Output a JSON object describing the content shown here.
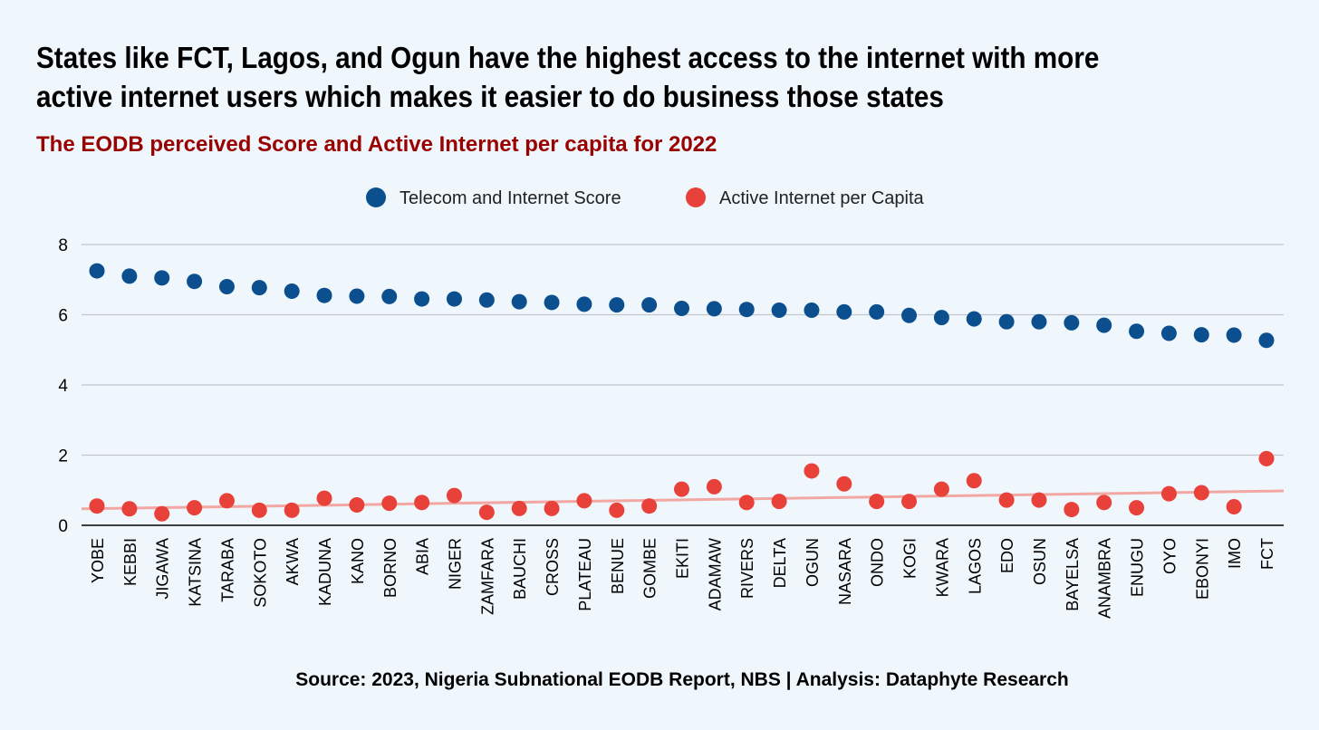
{
  "title": "States like FCT, Lagos, and Ogun have the highest access to the internet with more active internet users which makes it easier to do business those states",
  "subtitle": "The EODB perceived Score and Active Internet per capita for 2022",
  "source": "Source: 2023, Nigeria Subnational EODB Report, NBS | Analysis: Dataphyte Research",
  "colors": {
    "telecom": "#0b4f8f",
    "internet": "#e8413a",
    "trend": "#f2a7a3",
    "grid": "#c2c7cc",
    "axis": "#000000",
    "background": "#eff6fc"
  },
  "chart_data": {
    "type": "scatter",
    "title": "The EODB perceived Score and Active Internet per capita for 2022",
    "xlabel": "",
    "ylabel": "",
    "ylim": [
      0,
      8
    ],
    "yticks": [
      0,
      2,
      4,
      6,
      8
    ],
    "ytick_labels": [
      "0",
      "2",
      "4",
      "6",
      "8"
    ],
    "grid": true,
    "legend_position": "top-center",
    "categories": [
      "YOBE",
      "KEBBI",
      "JIGAWA",
      "KATSINA",
      "TARABA",
      "SOKOTO",
      "AKWA",
      "KADUNA",
      "KANO",
      "BORNO",
      "ABIA",
      "NIGER",
      "ZAMFARA",
      "BAUCHI",
      "CROSS",
      "PLATEAU",
      "BENUE",
      "GOMBE",
      "EKITI",
      "ADAMAW",
      "RIVERS",
      "DELTA",
      "OGUN",
      "NASARA",
      "ONDO",
      "KOGI",
      "KWARA",
      "LAGOS",
      "EDO",
      "OSUN",
      "BAYELSA",
      "ANAMBRA",
      "ENUGU",
      "OYO",
      "EBONYI",
      "IMO",
      "FCT"
    ],
    "series": [
      {
        "name": "Telecom and Internet Score",
        "values": [
          7.25,
          7.1,
          7.05,
          6.95,
          6.8,
          6.77,
          6.67,
          6.55,
          6.53,
          6.52,
          6.45,
          6.45,
          6.42,
          6.37,
          6.35,
          6.3,
          6.28,
          6.28,
          6.18,
          6.17,
          6.15,
          6.13,
          6.13,
          6.08,
          6.08,
          5.98,
          5.92,
          5.88,
          5.8,
          5.8,
          5.77,
          5.7,
          5.53,
          5.47,
          5.43,
          5.42,
          5.27
        ]
      },
      {
        "name": "Active Internet per Capita",
        "values": [
          0.55,
          0.47,
          0.33,
          0.5,
          0.7,
          0.43,
          0.43,
          0.77,
          0.58,
          0.63,
          0.65,
          0.85,
          0.37,
          0.48,
          0.48,
          0.7,
          0.43,
          0.55,
          1.03,
          1.1,
          0.65,
          0.68,
          1.55,
          1.18,
          0.68,
          0.68,
          1.03,
          1.27,
          0.72,
          0.72,
          0.45,
          0.65,
          0.5,
          0.9,
          0.93,
          0.53,
          1.9
        ]
      }
    ],
    "trendline": {
      "series": "Active Internet per Capita",
      "start": 0.47,
      "end": 0.98
    }
  }
}
